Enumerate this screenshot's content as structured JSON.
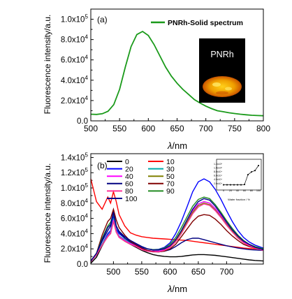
{
  "chart_data": [
    {
      "type": "line",
      "panel_label": "(a)",
      "xlabel_symbol": "λ",
      "xlabel_unit": "/nm",
      "ylabel": "Fluorescence intensity/a.u.",
      "xlim": [
        500,
        800
      ],
      "ylim": [
        0,
        110000
      ],
      "x_ticks": [
        "500",
        "550",
        "600",
        "650",
        "700",
        "750",
        "800"
      ],
      "y_ticks": [
        {
          "mant": "0.0",
          "exp": ""
        },
        {
          "mant": "2.0x10",
          "exp": "4"
        },
        {
          "mant": "4.0x10",
          "exp": "4"
        },
        {
          "mant": "6.0x10",
          "exp": "4"
        },
        {
          "mant": "8.0x10",
          "exp": "4"
        },
        {
          "mant": "1.0x10",
          "exp": "5"
        }
      ],
      "legend_position": "top-right",
      "inset_image_label": "PNRh",
      "series": [
        {
          "name": "PNRh-Solid spectrum",
          "color": "#1a9a1a",
          "x": [
            500,
            510,
            520,
            530,
            540,
            550,
            560,
            570,
            580,
            590,
            600,
            610,
            620,
            630,
            640,
            650,
            660,
            670,
            680,
            690,
            700,
            710,
            720,
            730,
            740,
            750,
            760,
            770,
            780,
            790,
            800
          ],
          "y": [
            6500,
            6300,
            7000,
            9500,
            16000,
            31000,
            53000,
            73000,
            85000,
            88000,
            84000,
            75000,
            64000,
            53000,
            44000,
            37000,
            31000,
            26000,
            21000,
            17500,
            14500,
            12000,
            10000,
            9000,
            8000,
            7200,
            6500,
            6000,
            5500,
            5200,
            5000
          ]
        }
      ]
    },
    {
      "type": "line",
      "panel_label": "(b)",
      "xlabel_symbol": "λ",
      "xlabel_unit": "/nm",
      "ylabel": "Fluorescence intensity/a.u.",
      "xlim": [
        460,
        765
      ],
      "ylim": [
        0,
        145000
      ],
      "x_ticks": [
        "500",
        "550",
        "600",
        "650",
        "700"
      ],
      "y_ticks": [
        {
          "mant": "0.0",
          "exp": ""
        },
        {
          "mant": "2.0x10",
          "exp": "4"
        },
        {
          "mant": "4.0x10",
          "exp": "4"
        },
        {
          "mant": "6.0x10",
          "exp": "4"
        },
        {
          "mant": "8.0x10",
          "exp": "4"
        },
        {
          "mant": "1.0x10",
          "exp": "5"
        },
        {
          "mant": "1.2x10",
          "exp": "5"
        },
        {
          "mant": "1.4x10",
          "exp": "5"
        }
      ],
      "legend_position": "top-left",
      "x": [
        460,
        470,
        480,
        490,
        495,
        500,
        505,
        510,
        520,
        530,
        540,
        550,
        560,
        570,
        580,
        590,
        600,
        610,
        620,
        630,
        640,
        650,
        660,
        670,
        680,
        690,
        700,
        710,
        720,
        730,
        740,
        750,
        765
      ],
      "series": [
        {
          "name": "0",
          "color": "#000000",
          "y": [
            1000,
            9000,
            24000,
            37000,
            40000,
            60000,
            42000,
            36000,
            30000,
            26000,
            22000,
            18000,
            15000,
            12500,
            11000,
            10000,
            9500,
            9500,
            10000,
            11000,
            12000,
            12500,
            12500,
            12000,
            11500,
            10500,
            9500,
            8500,
            7500,
            6500,
            5500,
            4800,
            4000
          ]
        },
        {
          "name": "10",
          "color": "#ff0000",
          "y": [
            112000,
            82000,
            72000,
            88000,
            80000,
            95000,
            82000,
            65000,
            50000,
            41000,
            38000,
            36000,
            35000,
            34000,
            33500,
            33000,
            32500,
            32000,
            31500,
            31000,
            30000,
            29000,
            28000,
            27000,
            26000,
            25000,
            24000,
            23000,
            22000,
            21000,
            20500,
            20000,
            19000
          ]
        },
        {
          "name": "20",
          "color": "#0000ff",
          "y": [
            3000,
            12000,
            26000,
            40000,
            44000,
            64000,
            46000,
            40000,
            34000,
            30000,
            26000,
            22000,
            20000,
            19000,
            19500,
            22000,
            28000,
            40000,
            56000,
            75000,
            95000,
            108000,
            112000,
            108000,
            98000,
            85000,
            70000,
            56000,
            44000,
            35000,
            29000,
            25000,
            21000
          ]
        },
        {
          "name": "30",
          "color": "#00aaaa",
          "y": [
            3000,
            12000,
            26000,
            38000,
            42000,
            60000,
            44000,
            37000,
            32000,
            28000,
            25000,
            21000,
            18000,
            17000,
            17000,
            19000,
            23000,
            31000,
            43000,
            57000,
            70000,
            79000,
            82000,
            80000,
            73000,
            64000,
            54000,
            44000,
            36000,
            29000,
            25000,
            22000,
            19000
          ]
        },
        {
          "name": "40",
          "color": "#ff00ff",
          "y": [
            3000,
            12000,
            25000,
            37000,
            41000,
            58000,
            43000,
            36000,
            31000,
            27000,
            24000,
            20000,
            18000,
            17000,
            17000,
            19000,
            23000,
            31000,
            43000,
            57000,
            70000,
            79000,
            82000,
            80000,
            73000,
            64000,
            54000,
            44000,
            36000,
            29000,
            25000,
            22000,
            19000
          ]
        },
        {
          "name": "50",
          "color": "#808000",
          "y": [
            3000,
            12000,
            25000,
            36000,
            40000,
            56000,
            42000,
            35000,
            30000,
            26000,
            23000,
            19000,
            17000,
            16000,
            16000,
            18000,
            22000,
            30000,
            42000,
            55000,
            68000,
            77000,
            80000,
            78000,
            71000,
            62000,
            52000,
            43000,
            35000,
            28000,
            24000,
            21000,
            18000
          ]
        },
        {
          "name": "60",
          "color": "#000080",
          "y": [
            4000,
            14000,
            30000,
            44000,
            50000,
            70000,
            50000,
            42000,
            34000,
            29000,
            25000,
            21000,
            18000,
            16500,
            16000,
            17000,
            19000,
            23000,
            28000,
            32000,
            34000,
            34000,
            32000,
            30000,
            28000,
            26000,
            24000,
            22500,
            21000,
            20000,
            19000,
            18500,
            18000
          ]
        },
        {
          "name": "70",
          "color": "#800000",
          "y": [
            4000,
            14000,
            38000,
            56000,
            60000,
            72000,
            58000,
            48000,
            38000,
            30000,
            25000,
            21000,
            18000,
            16500,
            16000,
            17000,
            20000,
            26000,
            36000,
            46000,
            56000,
            63000,
            65000,
            64000,
            59000,
            52000,
            44000,
            37000,
            31000,
            26000,
            23000,
            21000,
            19000
          ]
        },
        {
          "name": "80",
          "color": "#ff3399",
          "y": [
            3000,
            12000,
            25000,
            36000,
            40000,
            56000,
            42000,
            35000,
            30000,
            26000,
            23000,
            19000,
            17000,
            16000,
            16000,
            18000,
            22000,
            29000,
            40000,
            53000,
            66000,
            75000,
            79000,
            77000,
            70000,
            61000,
            51000,
            42000,
            34000,
            28000,
            24000,
            21000,
            18000
          ]
        },
        {
          "name": "90",
          "color": "#228b22",
          "y": [
            4000,
            14000,
            34000,
            50000,
            55000,
            66000,
            50000,
            43000,
            36000,
            31000,
            27000,
            23000,
            20000,
            19000,
            19000,
            21000,
            26000,
            35000,
            48000,
            62000,
            76000,
            85000,
            88000,
            86000,
            78000,
            68000,
            57000,
            47000,
            38000,
            31000,
            26000,
            23000,
            20000
          ]
        },
        {
          "name": "100",
          "color": "#00008b",
          "y": [
            4000,
            14000,
            32000,
            48000,
            52000,
            68000,
            50000,
            43000,
            36000,
            31000,
            27000,
            23000,
            20000,
            18500,
            18500,
            20000,
            24000,
            32000,
            44000,
            58000,
            72000,
            82000,
            86000,
            84000,
            76000,
            66000,
            55000,
            45000,
            37000,
            30000,
            26000,
            22000,
            19000
          ]
        }
      ],
      "inset": {
        "type": "line",
        "xlabel": "Water fraction / %",
        "x_ticks": [
          "0",
          "20",
          "40",
          "60",
          "80",
          "100"
        ],
        "y_ticks": [
          "2.0x10⁴",
          "4.0x10⁴",
          "6.0x10⁴",
          "8.0x10⁴",
          "1.0x10⁵",
          "1.2x10⁵"
        ],
        "xlim": [
          0,
          100
        ],
        "ylim": [
          0,
          130000
        ],
        "x": [
          0,
          10,
          20,
          30,
          40,
          50,
          60,
          70,
          80,
          90,
          100
        ],
        "y": [
          12500,
          12500,
          12500,
          12500,
          12500,
          12500,
          14000,
          65000,
          79000,
          86000,
          112000
        ]
      }
    }
  ]
}
